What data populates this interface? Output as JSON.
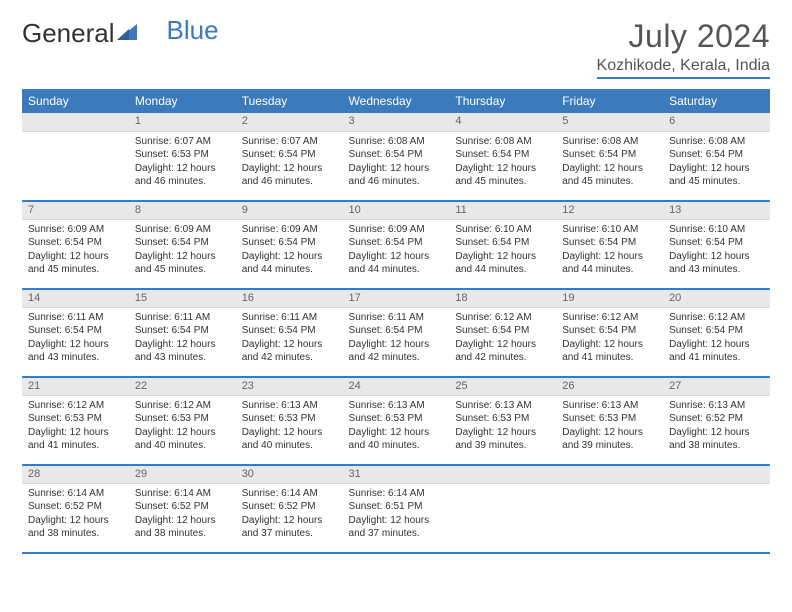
{
  "logo": {
    "text_gray": "General",
    "text_blue": "Blue"
  },
  "title": "July 2024",
  "location": "Kozhikode, Kerala, India",
  "colors": {
    "accent": "#3a7abd",
    "header_text": "#ffffff",
    "daynum_bg": "#e8e8e8",
    "text": "#333333"
  },
  "day_headers": [
    "Sunday",
    "Monday",
    "Tuesday",
    "Wednesday",
    "Thursday",
    "Friday",
    "Saturday"
  ],
  "weeks": [
    {
      "nums": [
        "",
        "1",
        "2",
        "3",
        "4",
        "5",
        "6"
      ],
      "cells": [
        null,
        {
          "sunrise": "Sunrise: 6:07 AM",
          "sunset": "Sunset: 6:53 PM",
          "day1": "Daylight: 12 hours",
          "day2": "and 46 minutes."
        },
        {
          "sunrise": "Sunrise: 6:07 AM",
          "sunset": "Sunset: 6:54 PM",
          "day1": "Daylight: 12 hours",
          "day2": "and 46 minutes."
        },
        {
          "sunrise": "Sunrise: 6:08 AM",
          "sunset": "Sunset: 6:54 PM",
          "day1": "Daylight: 12 hours",
          "day2": "and 46 minutes."
        },
        {
          "sunrise": "Sunrise: 6:08 AM",
          "sunset": "Sunset: 6:54 PM",
          "day1": "Daylight: 12 hours",
          "day2": "and 45 minutes."
        },
        {
          "sunrise": "Sunrise: 6:08 AM",
          "sunset": "Sunset: 6:54 PM",
          "day1": "Daylight: 12 hours",
          "day2": "and 45 minutes."
        },
        {
          "sunrise": "Sunrise: 6:08 AM",
          "sunset": "Sunset: 6:54 PM",
          "day1": "Daylight: 12 hours",
          "day2": "and 45 minutes."
        }
      ]
    },
    {
      "nums": [
        "7",
        "8",
        "9",
        "10",
        "11",
        "12",
        "13"
      ],
      "cells": [
        {
          "sunrise": "Sunrise: 6:09 AM",
          "sunset": "Sunset: 6:54 PM",
          "day1": "Daylight: 12 hours",
          "day2": "and 45 minutes."
        },
        {
          "sunrise": "Sunrise: 6:09 AM",
          "sunset": "Sunset: 6:54 PM",
          "day1": "Daylight: 12 hours",
          "day2": "and 45 minutes."
        },
        {
          "sunrise": "Sunrise: 6:09 AM",
          "sunset": "Sunset: 6:54 PM",
          "day1": "Daylight: 12 hours",
          "day2": "and 44 minutes."
        },
        {
          "sunrise": "Sunrise: 6:09 AM",
          "sunset": "Sunset: 6:54 PM",
          "day1": "Daylight: 12 hours",
          "day2": "and 44 minutes."
        },
        {
          "sunrise": "Sunrise: 6:10 AM",
          "sunset": "Sunset: 6:54 PM",
          "day1": "Daylight: 12 hours",
          "day2": "and 44 minutes."
        },
        {
          "sunrise": "Sunrise: 6:10 AM",
          "sunset": "Sunset: 6:54 PM",
          "day1": "Daylight: 12 hours",
          "day2": "and 44 minutes."
        },
        {
          "sunrise": "Sunrise: 6:10 AM",
          "sunset": "Sunset: 6:54 PM",
          "day1": "Daylight: 12 hours",
          "day2": "and 43 minutes."
        }
      ]
    },
    {
      "nums": [
        "14",
        "15",
        "16",
        "17",
        "18",
        "19",
        "20"
      ],
      "cells": [
        {
          "sunrise": "Sunrise: 6:11 AM",
          "sunset": "Sunset: 6:54 PM",
          "day1": "Daylight: 12 hours",
          "day2": "and 43 minutes."
        },
        {
          "sunrise": "Sunrise: 6:11 AM",
          "sunset": "Sunset: 6:54 PM",
          "day1": "Daylight: 12 hours",
          "day2": "and 43 minutes."
        },
        {
          "sunrise": "Sunrise: 6:11 AM",
          "sunset": "Sunset: 6:54 PM",
          "day1": "Daylight: 12 hours",
          "day2": "and 42 minutes."
        },
        {
          "sunrise": "Sunrise: 6:11 AM",
          "sunset": "Sunset: 6:54 PM",
          "day1": "Daylight: 12 hours",
          "day2": "and 42 minutes."
        },
        {
          "sunrise": "Sunrise: 6:12 AM",
          "sunset": "Sunset: 6:54 PM",
          "day1": "Daylight: 12 hours",
          "day2": "and 42 minutes."
        },
        {
          "sunrise": "Sunrise: 6:12 AM",
          "sunset": "Sunset: 6:54 PM",
          "day1": "Daylight: 12 hours",
          "day2": "and 41 minutes."
        },
        {
          "sunrise": "Sunrise: 6:12 AM",
          "sunset": "Sunset: 6:54 PM",
          "day1": "Daylight: 12 hours",
          "day2": "and 41 minutes."
        }
      ]
    },
    {
      "nums": [
        "21",
        "22",
        "23",
        "24",
        "25",
        "26",
        "27"
      ],
      "cells": [
        {
          "sunrise": "Sunrise: 6:12 AM",
          "sunset": "Sunset: 6:53 PM",
          "day1": "Daylight: 12 hours",
          "day2": "and 41 minutes."
        },
        {
          "sunrise": "Sunrise: 6:12 AM",
          "sunset": "Sunset: 6:53 PM",
          "day1": "Daylight: 12 hours",
          "day2": "and 40 minutes."
        },
        {
          "sunrise": "Sunrise: 6:13 AM",
          "sunset": "Sunset: 6:53 PM",
          "day1": "Daylight: 12 hours",
          "day2": "and 40 minutes."
        },
        {
          "sunrise": "Sunrise: 6:13 AM",
          "sunset": "Sunset: 6:53 PM",
          "day1": "Daylight: 12 hours",
          "day2": "and 40 minutes."
        },
        {
          "sunrise": "Sunrise: 6:13 AM",
          "sunset": "Sunset: 6:53 PM",
          "day1": "Daylight: 12 hours",
          "day2": "and 39 minutes."
        },
        {
          "sunrise": "Sunrise: 6:13 AM",
          "sunset": "Sunset: 6:53 PM",
          "day1": "Daylight: 12 hours",
          "day2": "and 39 minutes."
        },
        {
          "sunrise": "Sunrise: 6:13 AM",
          "sunset": "Sunset: 6:52 PM",
          "day1": "Daylight: 12 hours",
          "day2": "and 38 minutes."
        }
      ]
    },
    {
      "nums": [
        "28",
        "29",
        "30",
        "31",
        "",
        "",
        ""
      ],
      "cells": [
        {
          "sunrise": "Sunrise: 6:14 AM",
          "sunset": "Sunset: 6:52 PM",
          "day1": "Daylight: 12 hours",
          "day2": "and 38 minutes."
        },
        {
          "sunrise": "Sunrise: 6:14 AM",
          "sunset": "Sunset: 6:52 PM",
          "day1": "Daylight: 12 hours",
          "day2": "and 38 minutes."
        },
        {
          "sunrise": "Sunrise: 6:14 AM",
          "sunset": "Sunset: 6:52 PM",
          "day1": "Daylight: 12 hours",
          "day2": "and 37 minutes."
        },
        {
          "sunrise": "Sunrise: 6:14 AM",
          "sunset": "Sunset: 6:51 PM",
          "day1": "Daylight: 12 hours",
          "day2": "and 37 minutes."
        },
        null,
        null,
        null
      ]
    }
  ]
}
